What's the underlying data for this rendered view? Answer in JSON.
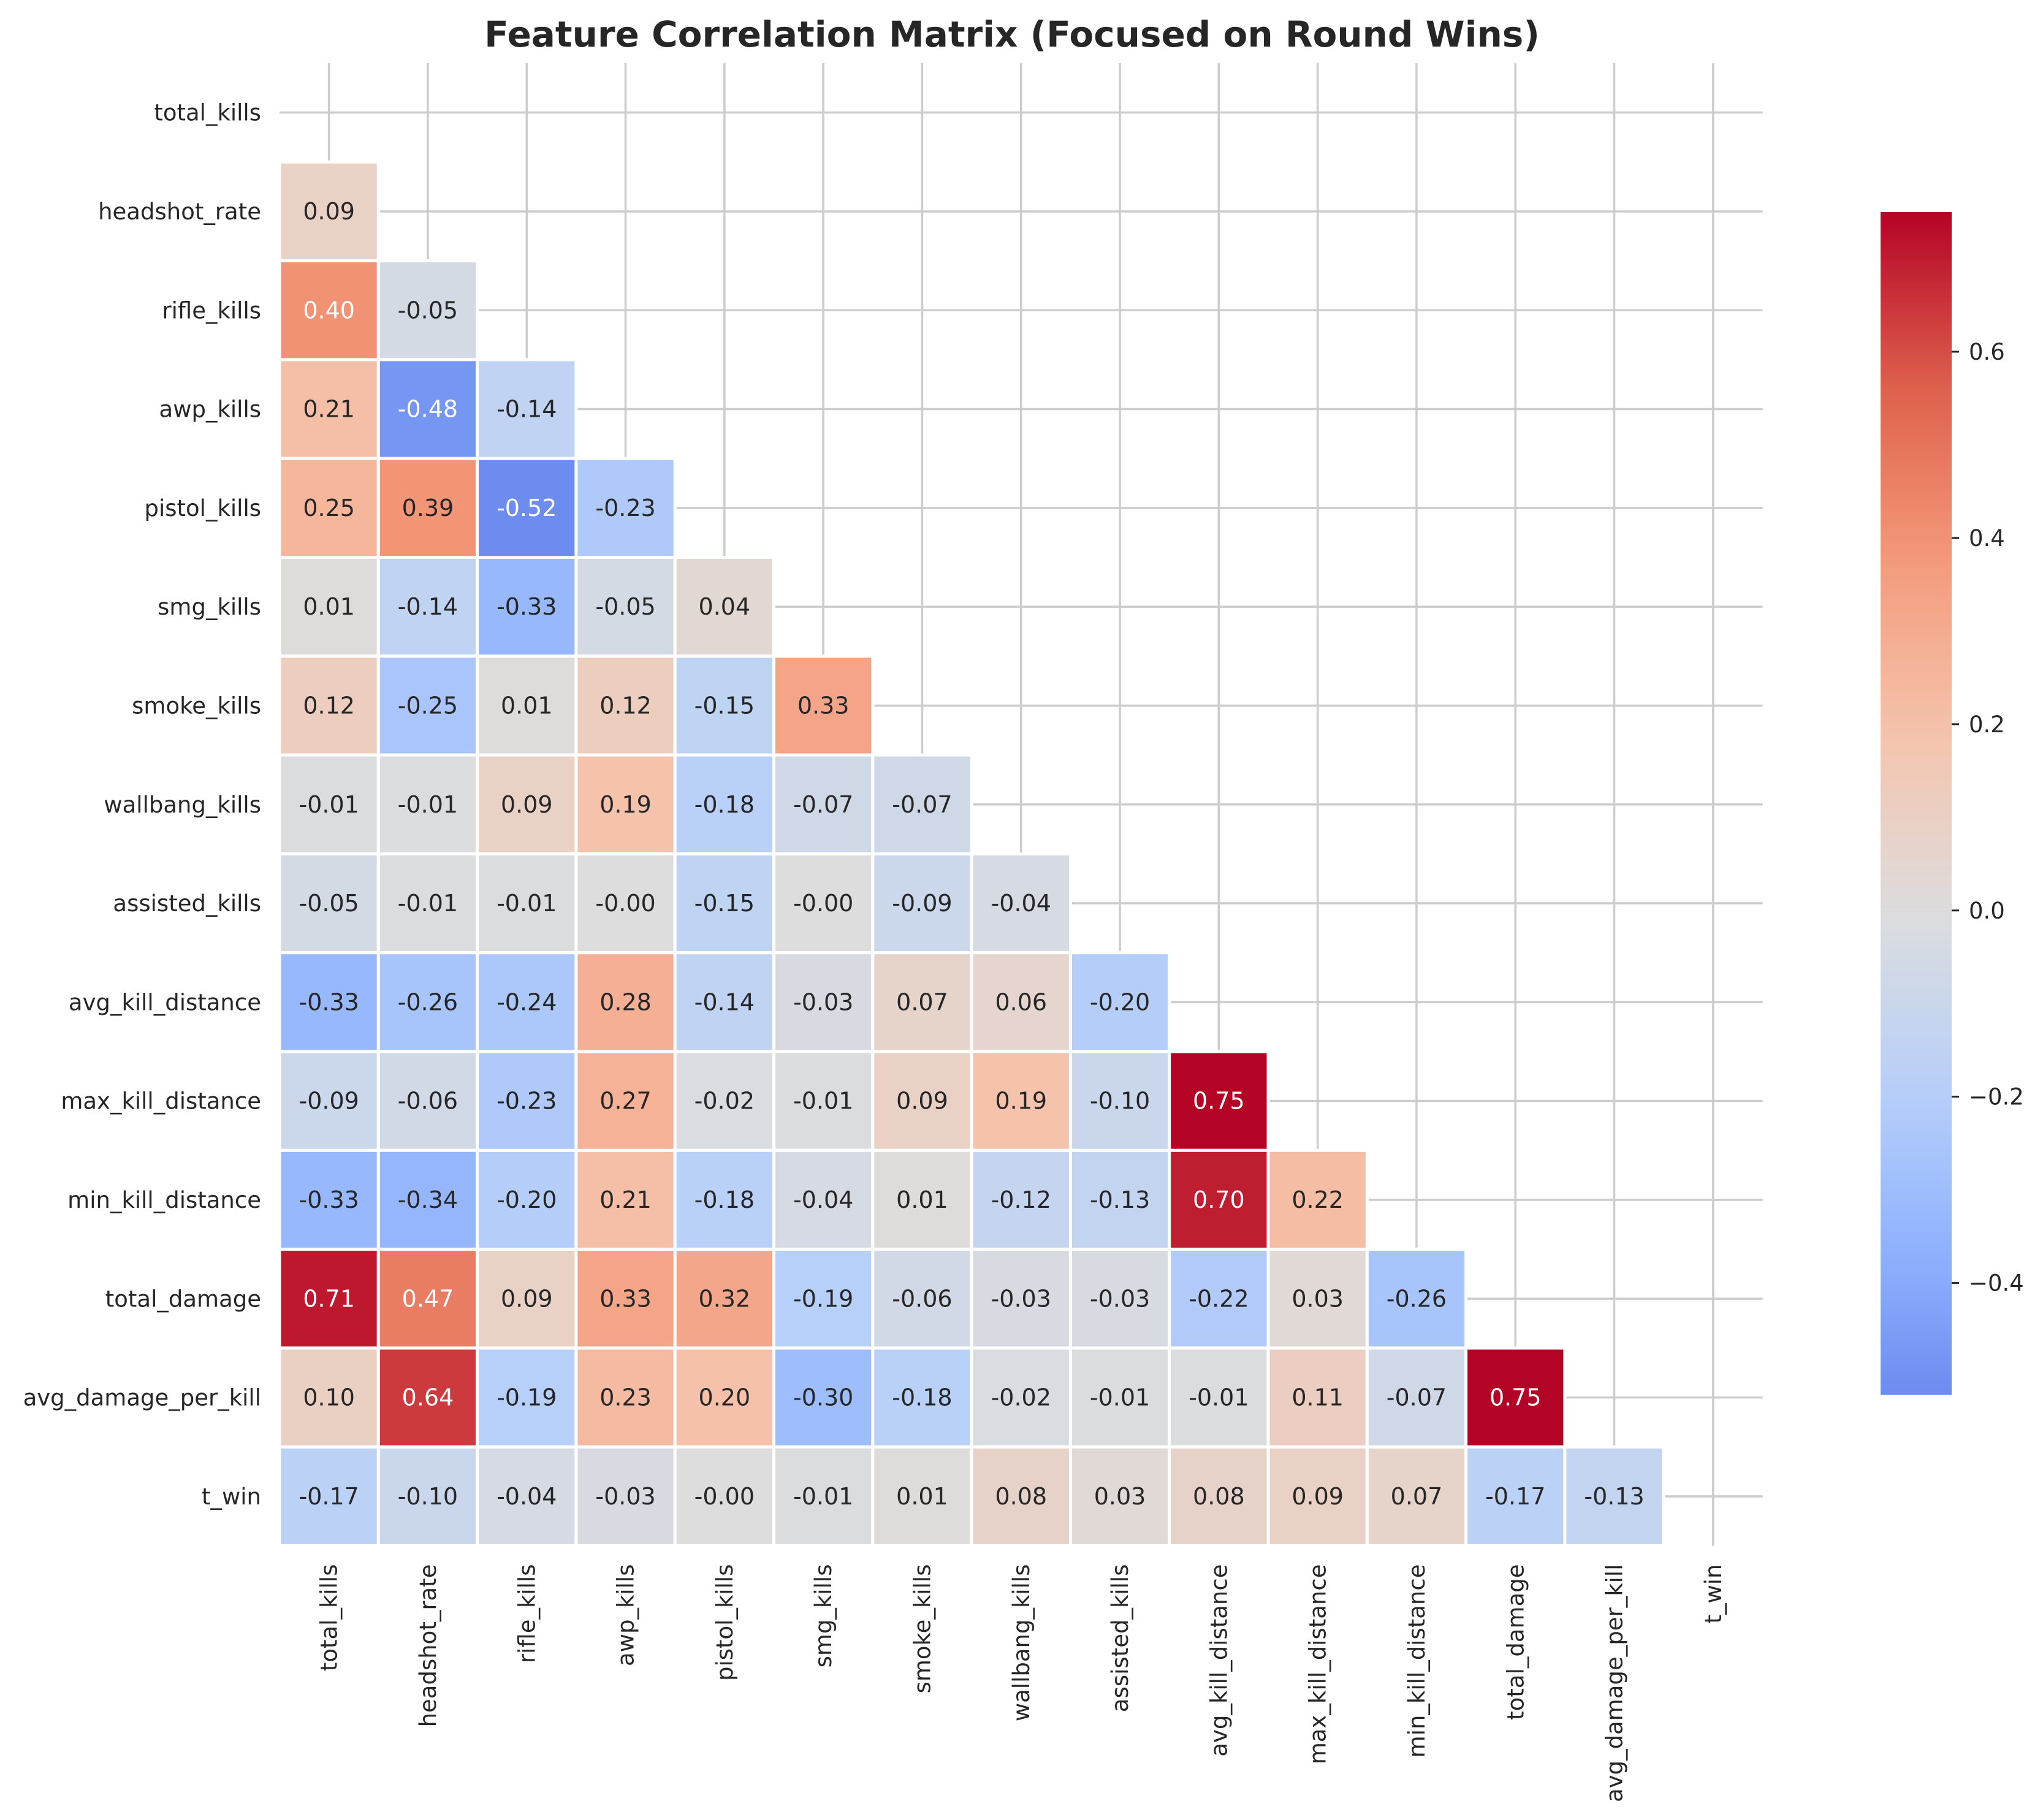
{
  "chart_data": {
    "type": "heatmap",
    "title": "Feature Correlation Matrix (Focused on Round Wins)",
    "mask": "upper-triangle-including-diagonal",
    "colormap": "coolwarm",
    "labels": [
      "total_kills",
      "headshot_rate",
      "rifle_kills",
      "awp_kills",
      "pistol_kills",
      "smg_kills",
      "smoke_kills",
      "wallbang_kills",
      "assisted_kills",
      "avg_kill_distance",
      "max_kill_distance",
      "min_kill_distance",
      "total_damage",
      "avg_damage_per_kill",
      "t_win"
    ],
    "rows": [
      [],
      [
        "0.09"
      ],
      [
        "0.40",
        "-0.05"
      ],
      [
        "0.21",
        "-0.48",
        "-0.14"
      ],
      [
        "0.25",
        "0.39",
        "-0.52",
        "-0.23"
      ],
      [
        "0.01",
        "-0.14",
        "-0.33",
        "-0.05",
        "0.04"
      ],
      [
        "0.12",
        "-0.25",
        "0.01",
        "0.12",
        "-0.15",
        "0.33"
      ],
      [
        "-0.01",
        "-0.01",
        "0.09",
        "0.19",
        "-0.18",
        "-0.07",
        "-0.07"
      ],
      [
        "-0.05",
        "-0.01",
        "-0.01",
        "-0.00",
        "-0.15",
        "-0.00",
        "-0.09",
        "-0.04"
      ],
      [
        "-0.33",
        "-0.26",
        "-0.24",
        "0.28",
        "-0.14",
        "-0.03",
        "0.07",
        "0.06",
        "-0.20"
      ],
      [
        "-0.09",
        "-0.06",
        "-0.23",
        "0.27",
        "-0.02",
        "-0.01",
        "0.09",
        "0.19",
        "-0.10",
        "0.75"
      ],
      [
        "-0.33",
        "-0.34",
        "-0.20",
        "0.21",
        "-0.18",
        "-0.04",
        "0.01",
        "-0.12",
        "-0.13",
        "0.70",
        "0.22"
      ],
      [
        "0.71",
        "0.47",
        "0.09",
        "0.33",
        "0.32",
        "-0.19",
        "-0.06",
        "-0.03",
        "-0.03",
        "-0.22",
        "0.03",
        "-0.26"
      ],
      [
        "0.10",
        "0.64",
        "-0.19",
        "0.23",
        "0.20",
        "-0.30",
        "-0.18",
        "-0.02",
        "-0.01",
        "-0.01",
        "0.11",
        "-0.07",
        "0.75"
      ],
      [
        "-0.17",
        "-0.10",
        "-0.04",
        "-0.03",
        "-0.00",
        "-0.01",
        "0.01",
        "0.08",
        "0.03",
        "0.08",
        "0.09",
        "0.07",
        "-0.17",
        "-0.13"
      ]
    ],
    "colorbar": {
      "vmin": -0.52,
      "vmax": 0.75,
      "tick_values": [
        -0.4,
        -0.2,
        0.0,
        0.2,
        0.4,
        0.6
      ],
      "tick_labels": [
        "−0.4",
        "−0.2",
        "0.0",
        "0.2",
        "0.4",
        "0.6"
      ]
    },
    "grid": true
  }
}
